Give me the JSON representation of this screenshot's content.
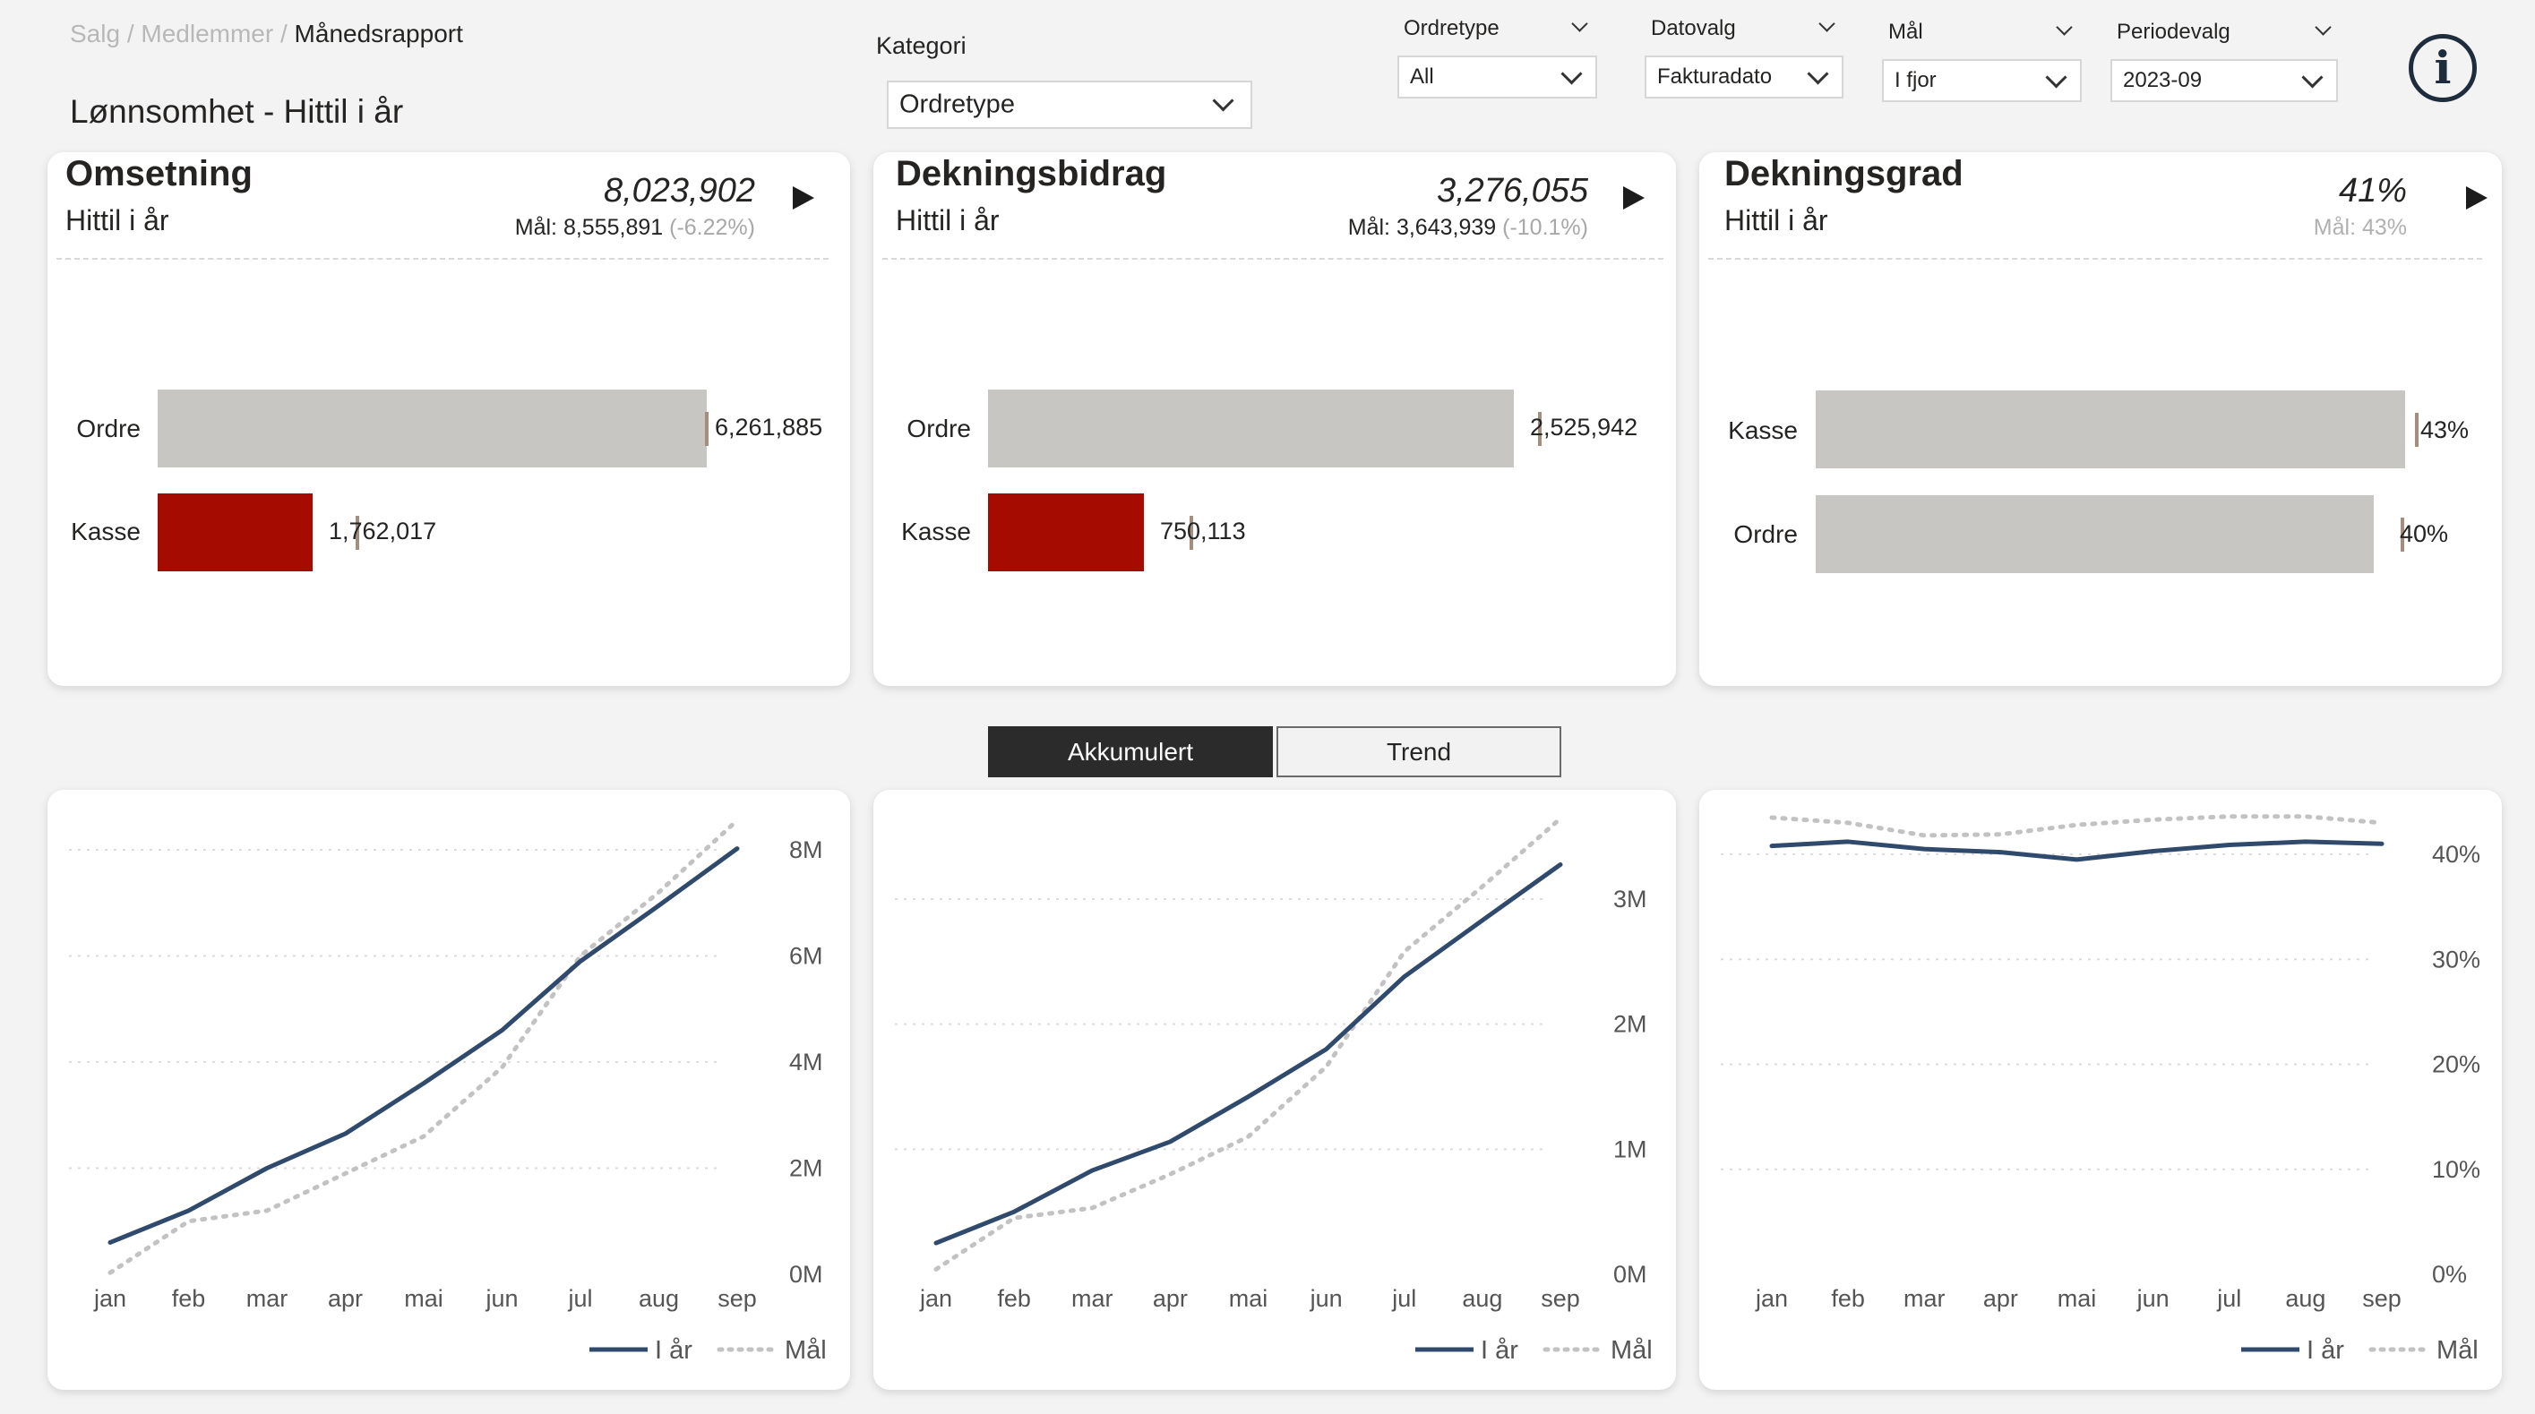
{
  "breadcrumb": {
    "items": [
      "Salg",
      "Medlemmer"
    ],
    "current": "Månedsrapport",
    "separator": "/"
  },
  "page_title": "Lønnsomhet - Hittil i år",
  "filters": {
    "kategori": {
      "label": "Kategori",
      "value": "Ordretype"
    },
    "ordretype": {
      "label": "Ordretype",
      "value": "All"
    },
    "datovalg": {
      "label": "Datovalg",
      "value": "Fakturadato"
    },
    "mal": {
      "label": "Mål",
      "value": "I fjor"
    },
    "periodevalg": {
      "label": "Periodevalg",
      "value": "2023-09"
    }
  },
  "info_icon": "info-circle-icon",
  "colors": {
    "kasse": "#a50b00",
    "ordre": "#c8c6c2",
    "line_actual": "#2f4a6c",
    "line_goal": "#c2c2c2",
    "tick": "#a58e7e"
  },
  "kpi_cards": [
    {
      "title": "Omsetning",
      "subtitle": "Hittil i år",
      "value": "8,023,902",
      "goal_text": "Mål: 8,555,891",
      "goal_pct": "(-6.22%)",
      "bars": [
        {
          "label": "Ordre",
          "value": 6261885,
          "display": "6,261,885"
        },
        {
          "label": "Kasse",
          "value": 1762017,
          "display": "1,762,017"
        }
      ]
    },
    {
      "title": "Dekningsbidrag",
      "subtitle": "Hittil i år",
      "value": "3,276,055",
      "goal_text": "Mål: 3,643,939",
      "goal_pct": "(-10.1%)",
      "bars": [
        {
          "label": "Ordre",
          "value": 2525942,
          "display": "2,525,942"
        },
        {
          "label": "Kasse",
          "value": 750113,
          "display": "750,113"
        }
      ]
    },
    {
      "title": "Dekningsgrad",
      "subtitle": "Hittil i år",
      "value": "41%",
      "goal_text": "Mål: 43%",
      "goal_pct": "",
      "bars": [
        {
          "label": "Kasse",
          "value": 43,
          "display": "43%"
        },
        {
          "label": "Ordre",
          "value": 40,
          "display": "40%"
        }
      ]
    }
  ],
  "toggle": {
    "akkumulert": "Akkumulert",
    "trend": "Trend",
    "active": "Akkumulert"
  },
  "chart_data": [
    {
      "type": "line",
      "categories": [
        "jan",
        "feb",
        "mar",
        "apr",
        "mai",
        "jun",
        "jul",
        "aug",
        "sep"
      ],
      "yticks": [
        "0M",
        "2M",
        "4M",
        "6M",
        "8M"
      ],
      "ylim": [
        0,
        8000000
      ],
      "series": [
        {
          "name": "I år",
          "values": [
            600000,
            1200000,
            2000000,
            2650000,
            3600000,
            4600000,
            5900000,
            6950000,
            8023902
          ]
        },
        {
          "name": "Mål",
          "values": [
            30000,
            1000000,
            1200000,
            1900000,
            2600000,
            3900000,
            6000000,
            7200000,
            8555891
          ]
        }
      ]
    },
    {
      "type": "line",
      "categories": [
        "jan",
        "feb",
        "mar",
        "apr",
        "mai",
        "jun",
        "jul",
        "aug",
        "sep"
      ],
      "yticks": [
        "0M",
        "1M",
        "2M",
        "3M"
      ],
      "ylim": [
        0,
        3000000
      ],
      "series": [
        {
          "name": "I år",
          "values": [
            250000,
            500000,
            830000,
            1060000,
            1420000,
            1800000,
            2380000,
            2830000,
            3276055
          ]
        },
        {
          "name": "Mål",
          "values": [
            40000,
            450000,
            530000,
            800000,
            1100000,
            1660000,
            2580000,
            3100000,
            3643939
          ]
        }
      ]
    },
    {
      "type": "line",
      "categories": [
        "jan",
        "feb",
        "mar",
        "apr",
        "mai",
        "jun",
        "jul",
        "aug",
        "sep"
      ],
      "yticks": [
        "0%",
        "10%",
        "20%",
        "30%",
        "40%"
      ],
      "ylim": [
        0,
        40
      ],
      "series": [
        {
          "name": "I år",
          "values": [
            40.8,
            41.2,
            40.5,
            40.2,
            39.5,
            40.3,
            40.9,
            41.2,
            41.0
          ]
        },
        {
          "name": "Mål",
          "values": [
            43.5,
            43.0,
            41.8,
            41.9,
            42.8,
            43.3,
            43.6,
            43.6,
            43.0
          ]
        }
      ]
    }
  ]
}
